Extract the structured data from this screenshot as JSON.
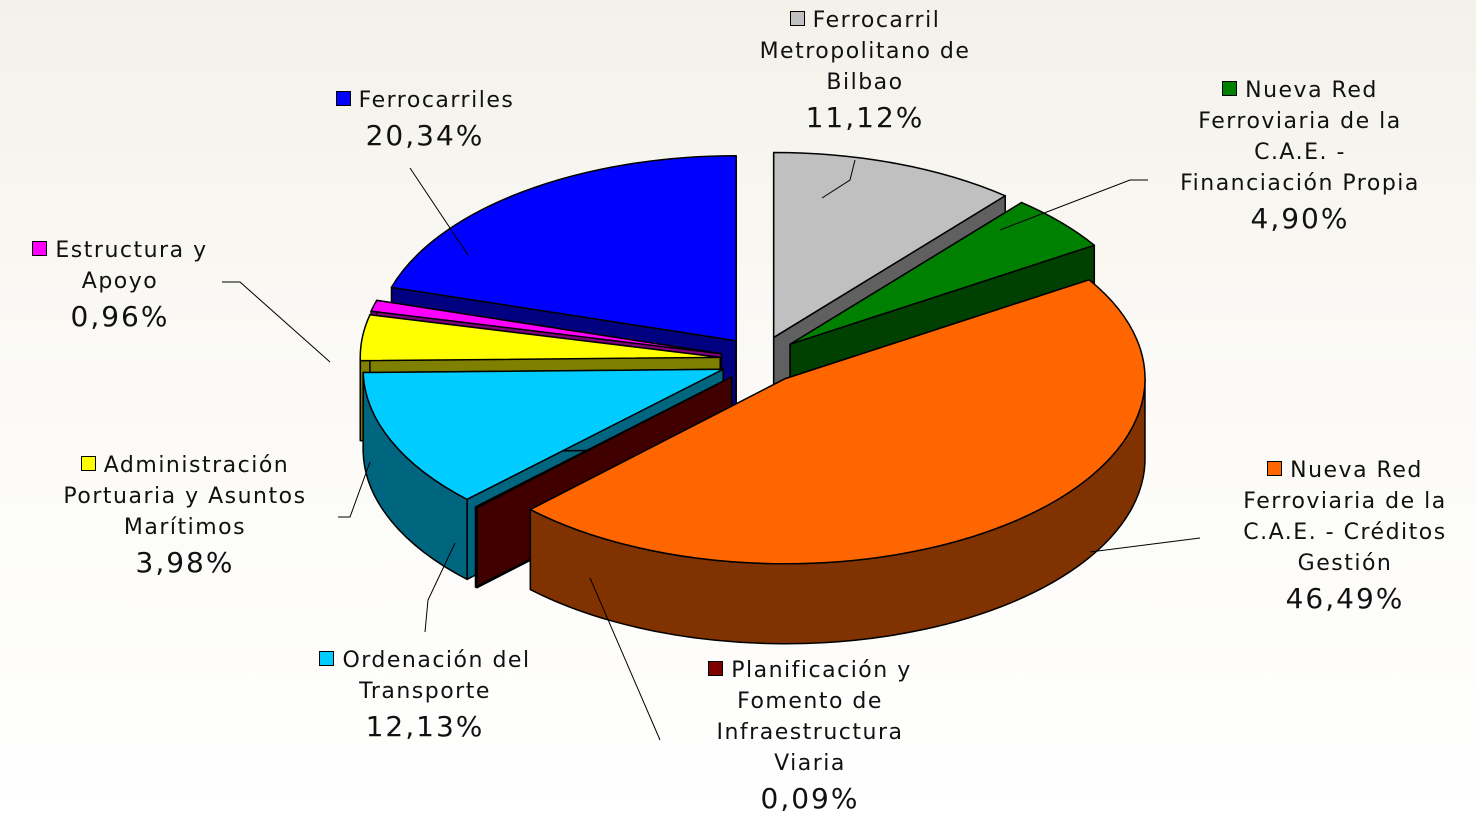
{
  "chart_data": {
    "type": "pie",
    "categories": [
      "Ferrocarril Metropolitano de Bilbao",
      "Nueva Red Ferroviaria de la C.A.E. - Financiación Propia",
      "Nueva Red Ferroviaria de la C.A.E. - Créditos Gestión",
      "Planificación y Fomento de Infraestructura Viaria",
      "Ordenación del Transporte",
      "Administración Portuaria y Asuntos Marítimos",
      "Estructura y Apoyo",
      "Ferrocarriles"
    ],
    "values": [
      11.12,
      4.9,
      46.49,
      0.09,
      12.13,
      3.98,
      0.96,
      20.34
    ],
    "value_labels": [
      "11,12%",
      "4,90%",
      "46,49%",
      "0,09%",
      "12,13%",
      "3,98%",
      "0,96%",
      "20,34%"
    ],
    "colors": [
      "#c0c0c0",
      "#008000",
      "#ff6600",
      "#800000",
      "#00ccff",
      "#ffff00",
      "#ff00ff",
      "#0000ff"
    ]
  }
}
